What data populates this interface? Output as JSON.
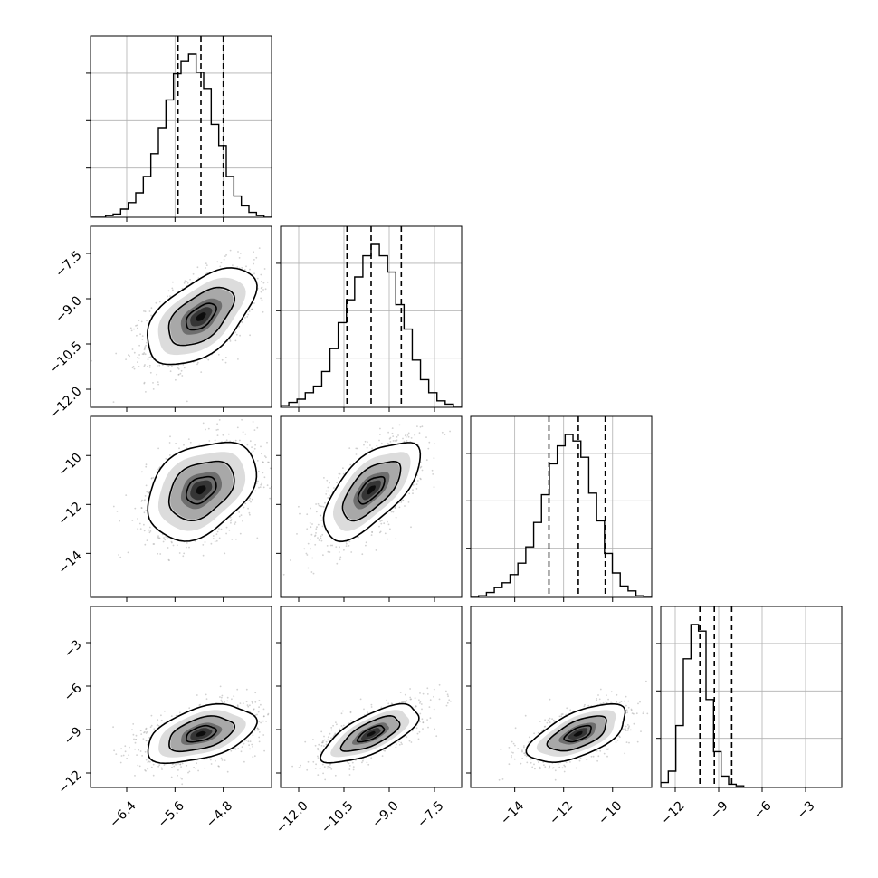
{
  "chart_data": {
    "type": "corner",
    "parameters": [
      {
        "range": [
          -7.0,
          -4.0
        ],
        "ticks": [
          -6.4,
          -5.6,
          -4.8
        ],
        "tick_labels": [
          "−6.4",
          "−5.6",
          "−4.8"
        ],
        "quantiles": [
          -5.55,
          -5.17,
          -4.8
        ],
        "hist": [
          0,
          0,
          0.01,
          0.02,
          0.05,
          0.09,
          0.15,
          0.25,
          0.39,
          0.55,
          0.72,
          0.88,
          0.96,
          1.0,
          0.89,
          0.79,
          0.57,
          0.44,
          0.25,
          0.13,
          0.07,
          0.03,
          0.01,
          0
        ]
      },
      {
        "range": [
          -12.6,
          -6.6
        ],
        "ticks": [
          -12.0,
          -10.5,
          -9.0,
          -7.5
        ],
        "tick_labels": [
          "−12.0",
          "−10.5",
          "−9.0",
          "−7.5"
        ],
        "quantiles": [
          -10.4,
          -9.6,
          -8.6
        ],
        "hist": [
          0.01,
          0.03,
          0.05,
          0.09,
          0.13,
          0.22,
          0.36,
          0.52,
          0.66,
          0.8,
          0.93,
          1.0,
          0.93,
          0.83,
          0.63,
          0.48,
          0.29,
          0.17,
          0.09,
          0.04,
          0.02,
          0
        ]
      },
      {
        "range": [
          -15.8,
          -8.4
        ],
        "ticks": [
          -14,
          -12,
          -10
        ],
        "tick_labels": [
          "−14",
          "−12",
          "−10"
        ],
        "quantiles": [
          -12.6,
          -11.4,
          -10.3
        ],
        "hist": [
          0,
          0.01,
          0.03,
          0.06,
          0.09,
          0.14,
          0.21,
          0.31,
          0.46,
          0.63,
          0.82,
          0.93,
          1.0,
          0.96,
          0.86,
          0.64,
          0.47,
          0.27,
          0.15,
          0.07,
          0.04,
          0.01,
          0
        ]
      },
      {
        "range": [
          -13.0,
          -0.5
        ],
        "ticks": [
          -12,
          -9,
          -6,
          -3
        ],
        "tick_labels": [
          "−12",
          "−9",
          "−6",
          "−3"
        ],
        "quantiles": [
          -10.3,
          -9.3,
          -8.1
        ],
        "hist": [
          0.03,
          0.1,
          0.38,
          0.79,
          1.0,
          0.96,
          0.54,
          0.22,
          0.07,
          0.02,
          0.01,
          0,
          0,
          0,
          0,
          0,
          0,
          0,
          0,
          0,
          0,
          0,
          0,
          0
        ]
      }
    ],
    "pairs": [
      {
        "row": 1,
        "col": 0,
        "center": [
          -5.17,
          -9.6
        ],
        "sigma": [
          0.45,
          0.8
        ],
        "rho": 0.55,
        "y_ticks": [
          -12.0,
          -10.5,
          -9.0,
          -7.5
        ],
        "y_tick_labels": [
          "−12.0",
          "−10.5",
          "−9.0",
          "−7.5"
        ]
      },
      {
        "row": 2,
        "col": 0,
        "center": [
          -5.17,
          -11.4
        ],
        "sigma": [
          0.45,
          1.0
        ],
        "rho": 0.35,
        "y_ticks": [
          -14,
          -12,
          -10
        ],
        "y_tick_labels": [
          "−14",
          "−12",
          "−10"
        ]
      },
      {
        "row": 2,
        "col": 1,
        "center": [
          -9.6,
          -11.4
        ],
        "sigma": [
          0.8,
          1.0
        ],
        "rho": 0.65
      },
      {
        "row": 3,
        "col": 0,
        "center": [
          -5.17,
          -9.3
        ],
        "sigma": [
          0.45,
          1.0
        ],
        "rho": 0.45,
        "y_ticks": [
          -12,
          -9,
          -6,
          -3
        ],
        "y_tick_labels": [
          "−12",
          "−9",
          "−6",
          "−3"
        ]
      },
      {
        "row": 3,
        "col": 1,
        "center": [
          -9.6,
          -9.3
        ],
        "sigma": [
          0.8,
          1.0
        ],
        "rho": 0.7
      },
      {
        "row": 3,
        "col": 2,
        "center": [
          -11.4,
          -9.3
        ],
        "sigma": [
          1.0,
          1.0
        ],
        "rho": 0.6
      }
    ]
  }
}
